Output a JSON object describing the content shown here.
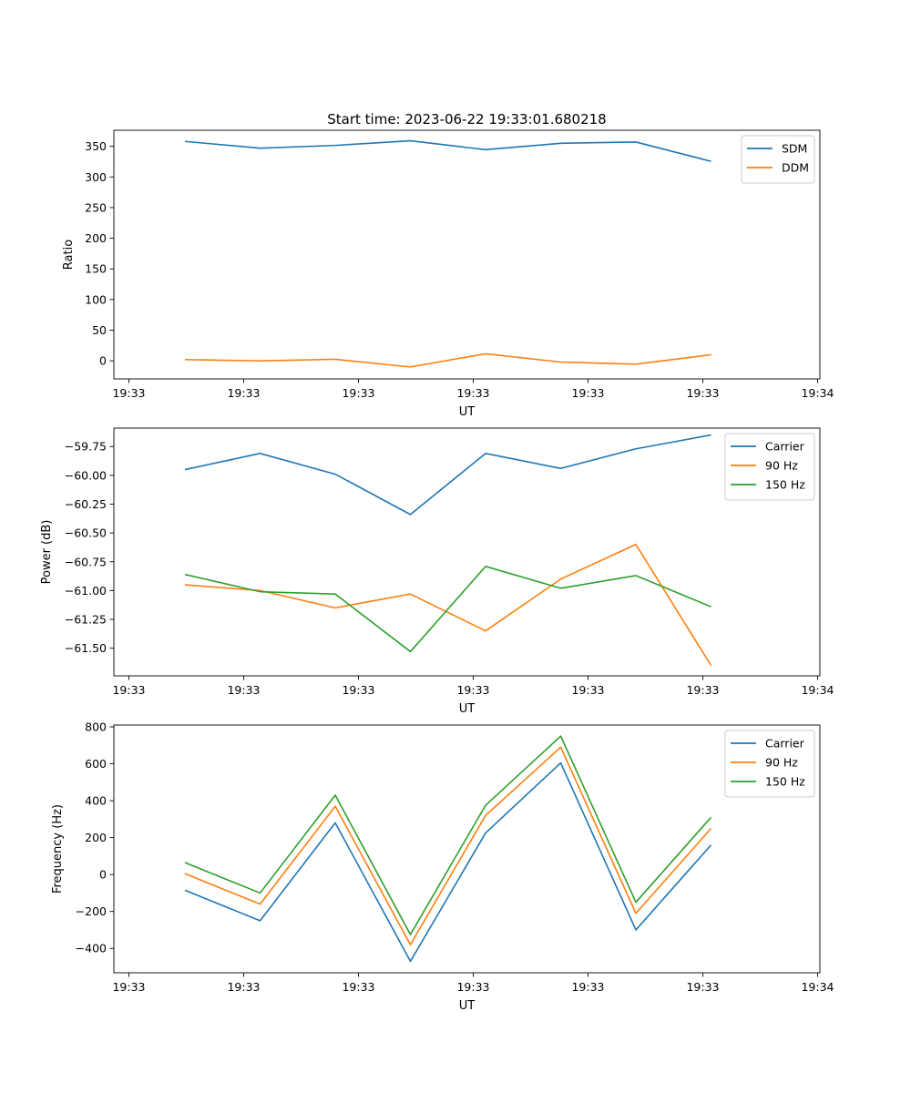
{
  "figure_title": "Start time: 2023-06-22 19:33:01.680218",
  "chart_data": [
    {
      "type": "line",
      "title": "Start time: 2023-06-22 19:33:01.680218",
      "xlabel": "UT",
      "ylabel": "Ratio",
      "x_tick_labels": [
        "19:33",
        "19:33",
        "19:33",
        "19:33",
        "19:33",
        "19:33",
        "19:34"
      ],
      "y_ticks": [
        0,
        50,
        100,
        150,
        200,
        250,
        300,
        350
      ],
      "y_tick_labels": [
        "0",
        "50",
        "100",
        "150",
        "200",
        "250",
        "300",
        "350"
      ],
      "ylim": [
        -29.5,
        376.2
      ],
      "legend": "top-right",
      "grid": false,
      "series": [
        {
          "name": "SDM",
          "color": "#1f77b4",
          "values": [
            358,
            347,
            351.5,
            359,
            344.5,
            355,
            357,
            325.5
          ]
        },
        {
          "name": "DDM",
          "color": "#ff7f0e",
          "values": [
            2,
            0,
            2.5,
            -10,
            11.5,
            -2,
            -5.5,
            10
          ]
        }
      ]
    },
    {
      "type": "line",
      "xlabel": "UT",
      "ylabel": "Power (dB)",
      "x_tick_labels": [
        "19:33",
        "19:33",
        "19:33",
        "19:33",
        "19:33",
        "19:33",
        "19:34"
      ],
      "y_ticks": [
        -61.5,
        -61.25,
        -61.0,
        -60.75,
        -60.5,
        -60.25,
        -60.0,
        -59.75
      ],
      "y_tick_labels": [
        "−61.50",
        "−61.25",
        "−61.00",
        "−60.75",
        "−60.50",
        "−60.25",
        "−60.00",
        "−59.75"
      ],
      "ylim": [
        -61.74,
        -59.59
      ],
      "legend": "top-right",
      "grid": false,
      "series": [
        {
          "name": "Carrier",
          "color": "#1f77b4",
          "values": [
            -59.95,
            -59.81,
            -59.99,
            -60.34,
            -59.81,
            -59.94,
            -59.77,
            -59.65
          ]
        },
        {
          "name": "90 Hz",
          "color": "#ff7f0e",
          "values": [
            -60.95,
            -61.0,
            -61.15,
            -61.03,
            -61.35,
            -60.9,
            -60.6,
            -61.65
          ]
        },
        {
          "name": "150 Hz",
          "color": "#2ca02c",
          "values": [
            -60.86,
            -61.01,
            -61.03,
            -61.53,
            -60.79,
            -60.98,
            -60.87,
            -61.14
          ]
        }
      ]
    },
    {
      "type": "line",
      "xlabel": "UT",
      "ylabel": "Frequency (Hz)",
      "x_tick_labels": [
        "19:33",
        "19:33",
        "19:33",
        "19:33",
        "19:33",
        "19:33",
        "19:34"
      ],
      "y_ticks": [
        -400,
        -200,
        0,
        200,
        400,
        600,
        800
      ],
      "y_tick_labels": [
        "−400",
        "−200",
        "0",
        "200",
        "400",
        "600",
        "800"
      ],
      "ylim": [
        -532,
        810
      ],
      "legend": "top-right",
      "grid": false,
      "series": [
        {
          "name": "Carrier",
          "color": "#1f77b4",
          "values": [
            -85,
            -250,
            280,
            -470,
            225,
            605,
            -300,
            160
          ]
        },
        {
          "name": "90 Hz",
          "color": "#ff7f0e",
          "values": [
            5,
            -160,
            370,
            -380,
            320,
            690,
            -210,
            250
          ]
        },
        {
          "name": "150 Hz",
          "color": "#2ca02c",
          "values": [
            65,
            -100,
            430,
            -325,
            375,
            750,
            -150,
            310
          ]
        }
      ]
    }
  ]
}
